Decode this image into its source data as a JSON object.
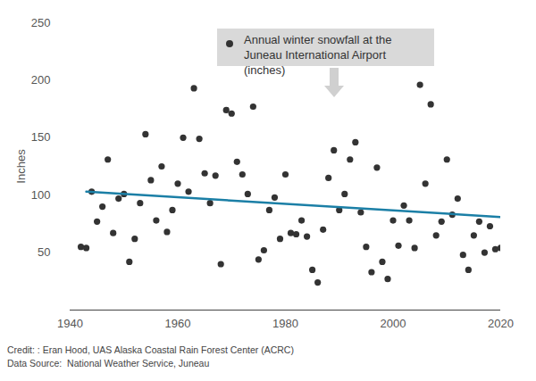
{
  "chart_data": {
    "type": "scatter",
    "y_label": "Inches",
    "caption": [
      "Credit: : Eran Hood, UAS Alaska Coastal Rain Forest Center (ACRC)",
      "Data Source:  National Weather Service, Juneau"
    ],
    "xlim": [
      1940,
      2020
    ],
    "xticks": [
      1940,
      1960,
      1980,
      2000,
      2020
    ],
    "ylim": [
      0,
      250
    ],
    "yticks": [
      50,
      100,
      150,
      200,
      250
    ],
    "grid": false,
    "x": [
      1942,
      1943,
      1944,
      1945,
      1946,
      1947,
      1948,
      1949,
      1950,
      1951,
      1952,
      1953,
      1954,
      1955,
      1956,
      1957,
      1958,
      1959,
      1960,
      1961,
      1962,
      1963,
      1964,
      1965,
      1966,
      1967,
      1968,
      1969,
      1970,
      1971,
      1972,
      1973,
      1974,
      1975,
      1976,
      1977,
      1978,
      1979,
      1980,
      1981,
      1982,
      1983,
      1984,
      1985,
      1986,
      1987,
      1988,
      1989,
      1990,
      1991,
      1992,
      1993,
      1994,
      1995,
      1996,
      1997,
      1998,
      1999,
      2000,
      2001,
      2002,
      2003,
      2004,
      2005,
      2006,
      2007,
      2008,
      2009,
      2010,
      2011,
      2012,
      2013,
      2014,
      2015,
      2016,
      2017,
      2018,
      2019,
      2020
    ],
    "series": [
      {
        "name": "Annual winter snowfall at the Juneau International Airport (inches)",
        "type": "scatter",
        "marker": "circle",
        "color": "#333333",
        "values": [
          55,
          54,
          103,
          77,
          90,
          131,
          67,
          97,
          101,
          42,
          62,
          93,
          153,
          113,
          78,
          125,
          68,
          87,
          110,
          150,
          103,
          193,
          149,
          119,
          93,
          117,
          40,
          174,
          171,
          129,
          118,
          101,
          177,
          44,
          52,
          87,
          98,
          62,
          118,
          67,
          66,
          78,
          64,
          35,
          24,
          70,
          115,
          139,
          87,
          101,
          131,
          146,
          85,
          55,
          33,
          124,
          42,
          27,
          78,
          56,
          91,
          78,
          54,
          196,
          110,
          179,
          65,
          77,
          131,
          83,
          97,
          48,
          35,
          65,
          77,
          50,
          73,
          53,
          54
        ]
      },
      {
        "type": "line",
        "line_style": "solid",
        "color": "#1b7fa6",
        "x": [
          1943,
          2020
        ],
        "values": [
          103,
          81
        ]
      }
    ]
  }
}
